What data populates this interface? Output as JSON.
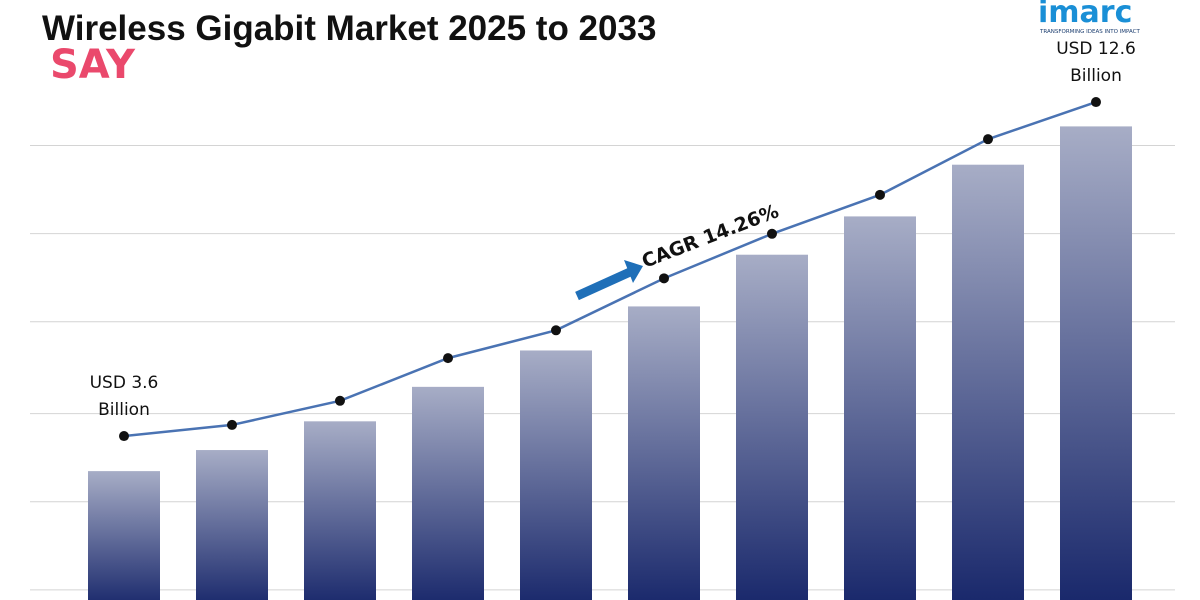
{
  "chart_data": {
    "type": "bar",
    "title": "Wireless Gigabit Market 2025 to 2033",
    "annotation": "CAGR 14.26%",
    "categories": [
      null,
      null,
      null,
      null,
      null,
      null,
      null,
      null,
      null,
      null
    ],
    "series": [
      {
        "type": "bar",
        "gradient": [
          "#a7adc6",
          "#17266a"
        ],
        "values": [
          3.6,
          4.15,
          4.9,
          5.8,
          6.75,
          7.9,
          9.25,
          10.25,
          11.6,
          12.6
        ]
      },
      {
        "type": "line",
        "axis": "y2",
        "color": "#4a73b3",
        "marker_color": "#111111",
        "values": [
          3.6,
          3.9,
          4.55,
          5.7,
          6.45,
          7.85,
          9.05,
          10.1,
          11.6,
          12.6
        ],
        "value_labels": [
          "USD 3.6 Billion",
          null,
          null,
          null,
          null,
          null,
          null,
          null,
          null,
          "USD 12.6 Billion"
        ]
      }
    ],
    "ylim": [
      0,
      15.9
    ],
    "yticks": [
      0.5,
      2.8,
      5.1,
      7.5,
      9.8,
      12.1
    ],
    "y2lim": [
      -1.06,
      15.35
    ],
    "grid": true
  },
  "logo": {
    "text": "imarc",
    "tagline": "TRANSFORMING IDEAS INTO IMPACT"
  },
  "watermark": "SAY"
}
